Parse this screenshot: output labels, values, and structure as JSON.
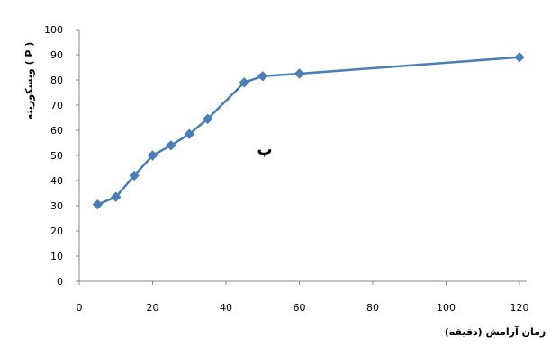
{
  "chart_data": {
    "type": "line",
    "title": "",
    "xlabel": "زمان آرامش (دقیقه)",
    "ylabel": "ویسکوزیته ( P )",
    "annotation": "ب",
    "xlim": [
      0,
      120
    ],
    "ylim": [
      0,
      100
    ],
    "x_ticks": [
      0,
      20,
      40,
      60,
      80,
      100,
      120
    ],
    "y_ticks": [
      0,
      10,
      20,
      30,
      40,
      50,
      60,
      70,
      80,
      90,
      100
    ],
    "grid": false,
    "legend": "none",
    "series": [
      {
        "x": [
          5,
          10,
          15,
          20,
          25,
          30,
          35,
          45,
          50,
          60,
          120
        ],
        "y": [
          30.5,
          33.5,
          42,
          50,
          54,
          58.5,
          64.5,
          79,
          81.5,
          82.5,
          89
        ]
      }
    ]
  },
  "colors": {
    "series": "#4A7EBB",
    "axis": "#888888",
    "text": "#000000"
  }
}
